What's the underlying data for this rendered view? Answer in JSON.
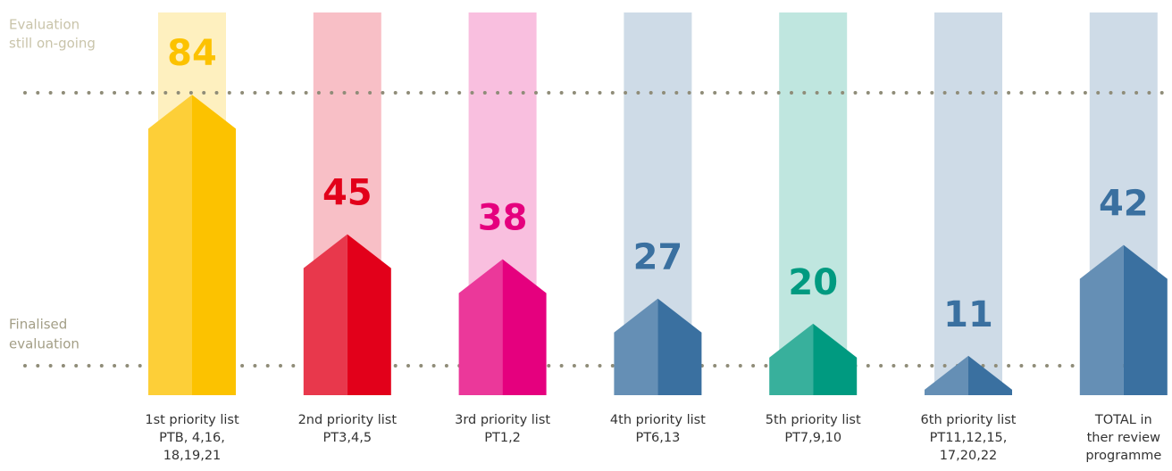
{
  "chart_data": {
    "type": "arrow-bar",
    "categories": [
      [
        "1st priority list",
        "PTB, 4,16,",
        "18,19,21"
      ],
      [
        "2nd priority list",
        "PT3,4,5"
      ],
      [
        "3rd priority list",
        "PT1,2"
      ],
      [
        "4th priority list",
        "PT6,13"
      ],
      [
        "5th priority list",
        "PT7,9,10"
      ],
      [
        "6th priority list",
        "PT11,12,15,",
        "17,20,22"
      ],
      [
        "TOTAL in",
        "ther review",
        "programme"
      ]
    ],
    "values": [
      84,
      45,
      38,
      27,
      20,
      11,
      42
    ],
    "colors": [
      "#fcc200",
      "#e2001a",
      "#e5007e",
      "#3a70a0",
      "#009a80",
      "#3a70a0",
      "#3a70a0"
    ],
    "ylim": [
      0,
      107
    ],
    "annotations": [
      [
        "Evaluation",
        "still on-going"
      ],
      [
        "Finalised",
        "evaluation"
      ]
    ]
  }
}
